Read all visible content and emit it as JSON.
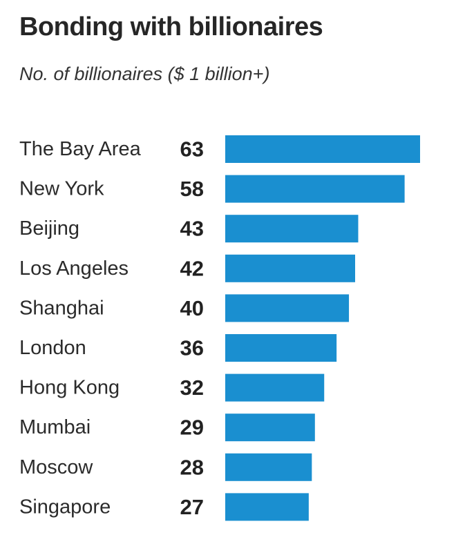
{
  "chart_data": {
    "type": "bar",
    "orientation": "horizontal",
    "title": "Bonding with billionaires",
    "subtitle": "No. of billionaires ($ 1 billion+)",
    "categories": [
      "The Bay Area",
      "New York",
      "Beijing",
      "Los Angeles",
      "Shanghai",
      "London",
      "Hong Kong",
      "Mumbai",
      "Moscow",
      "Singapore"
    ],
    "values": [
      63,
      58,
      43,
      42,
      40,
      36,
      32,
      29,
      28,
      27
    ],
    "xlim": [
      0,
      63
    ],
    "grid": false,
    "legend": "none",
    "bar_color": "#1a8fd0"
  }
}
